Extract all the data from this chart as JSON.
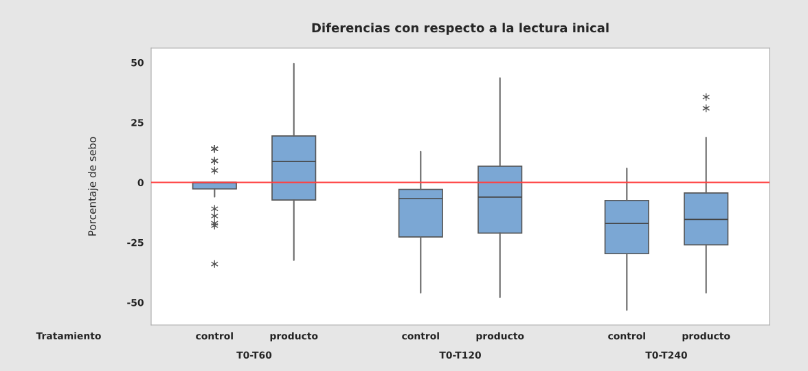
{
  "chart_data": {
    "type": "box",
    "title": "Diferencias con respecto a la lectura inical",
    "ylabel": "Porcentaje de sebo",
    "categories": [
      "control",
      "producto",
      "control",
      "producto",
      "control",
      "producto"
    ],
    "boxes": [
      {
        "low": -6,
        "q1": -2.7,
        "median": 0,
        "q3": 0,
        "high": 0,
        "outliers": [
          14,
          14,
          14,
          9,
          9,
          5,
          -11,
          -14,
          -17,
          -18,
          -34
        ]
      },
      {
        "low": -32.4,
        "q1": -7.3,
        "median": 8.8,
        "q3": 19.4,
        "high": 49.5
      },
      {
        "low": -46,
        "q1": -22.7,
        "median": -6.7,
        "q3": -2.9,
        "high": 12.8
      },
      {
        "low": -47.9,
        "q1": -21.1,
        "median": -6.1,
        "q3": 6.8,
        "high": 43.5
      },
      {
        "low": -53.2,
        "q1": -29.7,
        "median": -17.1,
        "q3": -7.5,
        "high": 5.9
      },
      {
        "low": -46,
        "q1": -26,
        "median": -15.4,
        "q3": -4.4,
        "high": 18.7,
        "outliers": [
          35.6,
          30.9
        ]
      }
    ],
    "color": "#7ba7d4",
    "ylim": [
      -59.4,
      56
    ],
    "yticks": [
      {
        "value": -50,
        "label": "-50"
      },
      {
        "value": -25,
        "label": "-25"
      },
      0,
      25,
      50
    ],
    "ref_lines": [
      {
        "axis": "y",
        "value": 0,
        "color": "#ff4040"
      }
    ],
    "annotations": [
      "Tratamiento",
      "T0-T60",
      "T0-T120",
      "T0-T240"
    ],
    "grid": false,
    "legend": false
  }
}
